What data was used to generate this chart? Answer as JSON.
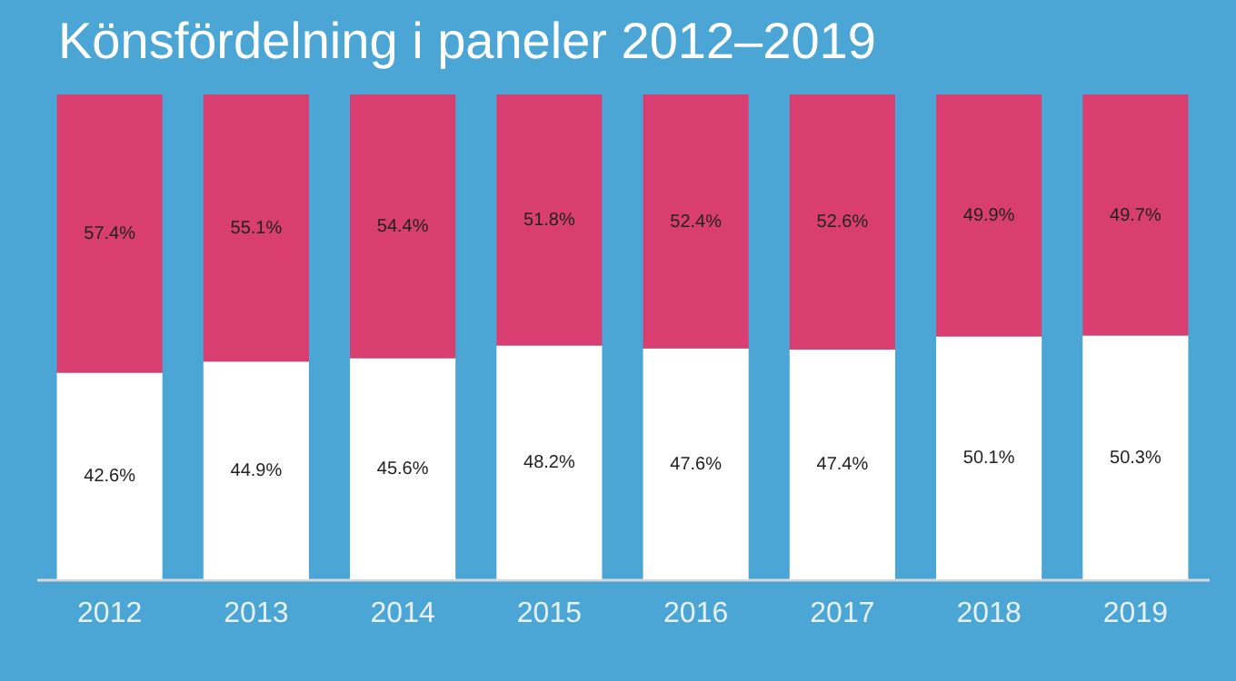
{
  "chart_data": {
    "type": "bar",
    "title": "Könsfördelning i paneler 2012–2019",
    "categories": [
      "2012",
      "2013",
      "2014",
      "2015",
      "2016",
      "2017",
      "2018",
      "2019"
    ],
    "stacked": true,
    "tick_labels": "x",
    "series": [
      {
        "color": "#ffffff",
        "values": [
          42.6,
          44.9,
          45.6,
          48.2,
          47.6,
          47.4,
          50.1,
          50.3
        ],
        "value_labels": [
          "42.6%",
          "44.9%",
          "45.6%",
          "48.2%",
          "47.6%",
          "47.4%",
          "50.1%",
          "50.3%"
        ]
      },
      {
        "color": "#d83f70",
        "values": [
          57.4,
          55.1,
          54.4,
          51.8,
          52.4,
          52.6,
          49.9,
          49.7
        ],
        "value_labels": [
          "57.4%",
          "55.1%",
          "54.4%",
          "51.8%",
          "52.4%",
          "52.6%",
          "49.9%",
          "49.7%"
        ]
      }
    ]
  }
}
